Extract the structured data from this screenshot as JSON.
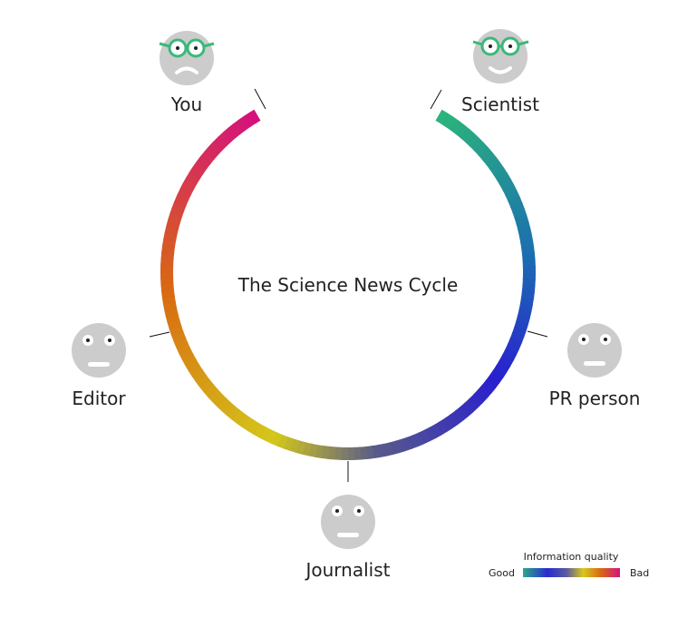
{
  "diagram": {
    "title": "The Science News Cycle",
    "actors": [
      {
        "id": "you",
        "label": "You",
        "expression": "frown",
        "glasses": true
      },
      {
        "id": "scientist",
        "label": "Scientist",
        "expression": "smile",
        "glasses": true
      },
      {
        "id": "pr-person",
        "label": "PR person",
        "expression": "flat",
        "glasses": false
      },
      {
        "id": "journalist",
        "label": "Journalist",
        "expression": "flat",
        "glasses": false
      },
      {
        "id": "editor",
        "label": "Editor",
        "expression": "flat",
        "glasses": false
      }
    ],
    "legend": {
      "title": "Information quality",
      "good_label": "Good",
      "bad_label": "Bad"
    }
  },
  "colors": {
    "face": "#cccccc",
    "glasses": "#3cb87a",
    "connector": "#111111",
    "text": "#222222",
    "quality_gradient": [
      "#2bb57a",
      "#1b6fb0",
      "#2a1fcf",
      "#585a8a",
      "#d4c81a",
      "#d86a12",
      "#d4107e"
    ]
  },
  "icons": {
    "face": "face-icon",
    "glasses": "glasses-icon"
  }
}
